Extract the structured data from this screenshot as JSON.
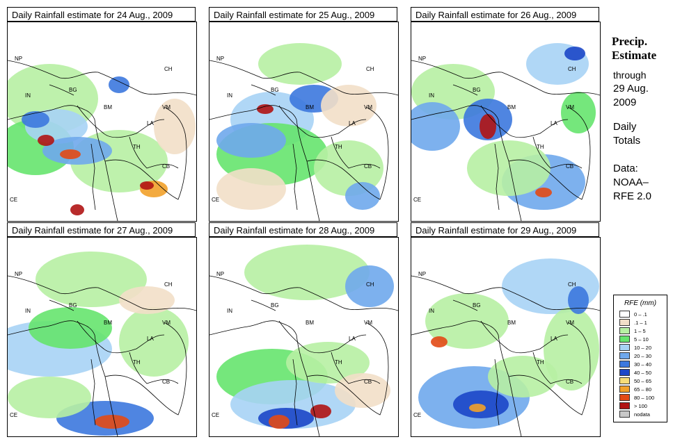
{
  "panels": [
    {
      "title": "Daily Rainfall estimate for  24 Aug., 2009"
    },
    {
      "title": "Daily Rainfall estimate for  25 Aug., 2009"
    },
    {
      "title": "Daily Rainfall estimate for  26 Aug., 2009"
    },
    {
      "title": "Daily Rainfall estimate for  27 Aug., 2009"
    },
    {
      "title": "Daily Rainfall estimate for  28 Aug., 2009"
    },
    {
      "title": "Daily Rainfall estimate for  29 Aug., 2009"
    }
  ],
  "map_labels": {
    "np": "NP",
    "ch": "CH",
    "in": "IN",
    "bg": "BG",
    "bm": "BM",
    "vm": "VM",
    "la": "LA",
    "th": "TH",
    "cb": "CB",
    "ce": "CE"
  },
  "sidebar": {
    "title_line1": "Precip.",
    "title_line2": "Estimate",
    "through": "through",
    "date_line1": "29 Aug.",
    "date_line2": "2009",
    "daily_line1": "Daily",
    "daily_line2": "Totals",
    "data_line1": "Data:",
    "data_line2": "NOAA–",
    "data_line3": "RFE 2.0"
  },
  "legend": {
    "title": "RFE (mm)",
    "items": [
      {
        "label": "0 – .1",
        "color": "#ffffff"
      },
      {
        "label": ".1 – 1",
        "color": "#f2dfc8"
      },
      {
        "label": "1 – 5",
        "color": "#b7f0a3"
      },
      {
        "label": "5 – 10",
        "color": "#66e46e"
      },
      {
        "label": "10 – 20",
        "color": "#a7d3f5"
      },
      {
        "label": "20 – 30",
        "color": "#6fa8ec"
      },
      {
        "label": "30 – 40",
        "color": "#3c78de"
      },
      {
        "label": "40 – 50",
        "color": "#1c47c8"
      },
      {
        "label": "50 – 65",
        "color": "#f5dc78"
      },
      {
        "label": "65 – 80",
        "color": "#f2a12a"
      },
      {
        "label": "80 – 100",
        "color": "#e24a15"
      },
      {
        "label": "> 100",
        "color": "#b01414"
      },
      {
        "label": "nodata",
        "color": "#c8c8c8"
      }
    ]
  }
}
